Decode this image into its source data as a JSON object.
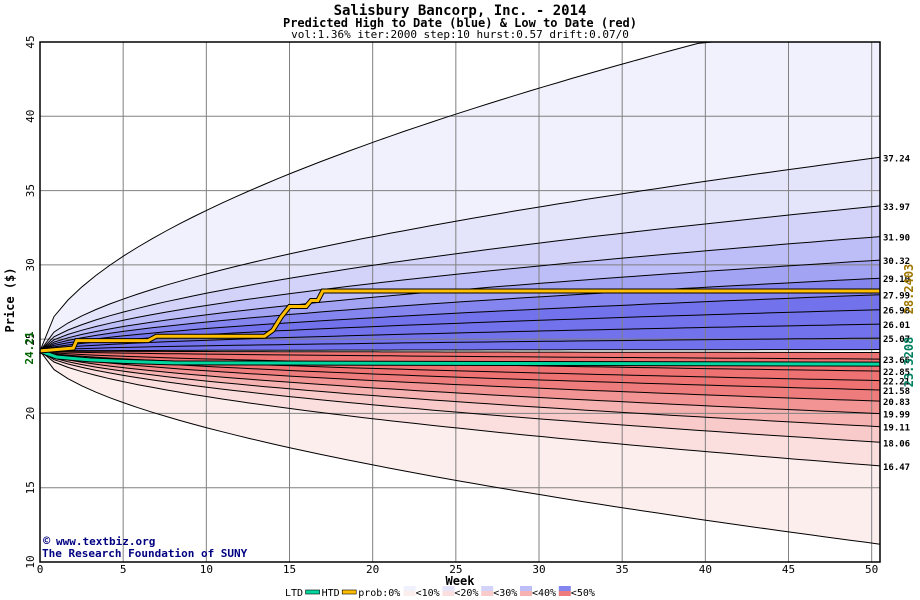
{
  "chart_data": {
    "type": "area",
    "title": "Salisbury Bancorp, Inc. - 2014",
    "subtitle": "Predicted High to Date (blue) &  Low to Date (red)",
    "params": "vol:1.36% iter:2000 step:10 hurst:0.57 drift:0.07/0",
    "xlabel": "Week",
    "ylabel": "Price ($)",
    "xlim": [
      0,
      50.5
    ],
    "ylim": [
      10,
      45
    ],
    "x_ticks": [
      0,
      5,
      10,
      15,
      20,
      25,
      30,
      35,
      40,
      45,
      50
    ],
    "y_ticks": [
      10,
      15,
      20,
      25,
      30,
      35,
      40,
      45
    ],
    "grid": true,
    "start_price": 24.21,
    "start_label": "24.21",
    "right_labels": [
      "37.24",
      "33.97",
      "31.90",
      "30.32",
      "29.10",
      "27.99",
      "26.98",
      "26.01",
      "25.07",
      "23.66",
      "22.85",
      "22.21",
      "21.58",
      "20.83",
      "19.99",
      "19.11",
      "18.06",
      "16.47"
    ],
    "high_final_label": "28.2403",
    "low_final_label": "23.3208",
    "high_series": {
      "name": "HTD",
      "x": [
        0,
        0.5,
        1,
        2,
        2.2,
        6.5,
        7,
        13.5,
        14,
        14.5,
        15,
        15.3,
        16,
        16.3,
        16.7,
        17,
        50.5
      ],
      "y": [
        24.21,
        24.25,
        24.3,
        24.4,
        24.9,
        24.9,
        25.2,
        25.2,
        25.6,
        26.5,
        27.2,
        27.2,
        27.2,
        27.6,
        27.6,
        28.24,
        28.24
      ]
    },
    "low_series": {
      "name": "LTD",
      "x": [
        0,
        0.5,
        1,
        2,
        3,
        5,
        8,
        50.5
      ],
      "y": [
        24.21,
        24.0,
        23.8,
        23.7,
        23.6,
        23.5,
        23.4,
        23.32
      ]
    },
    "legend": {
      "ltd": "LTD",
      "htd": "HTD",
      "prob": "prob:0%",
      "bins": [
        "<10%",
        "<20%",
        "<30%",
        "<40%",
        "<50%"
      ]
    },
    "credits": [
      "www.textbiz.org",
      "The Research Foundation of SUNY"
    ],
    "colors": {
      "blue_bands": [
        "#f1f1fd",
        "#e4e4fb",
        "#d3d3fa",
        "#bdbdf7",
        "#a3a3f3",
        "#8585ef",
        "#7272ec"
      ],
      "red_bands": [
        "#fdeeee",
        "#fbdede",
        "#f9caca",
        "#f6b1b1",
        "#f39494",
        "#ef7c7c",
        "#ee7272"
      ],
      "htd": "#ffbf00",
      "ltd": "#00d7a0",
      "axis_label_green": "#006400",
      "axis_label_gold": "#a07800"
    }
  }
}
